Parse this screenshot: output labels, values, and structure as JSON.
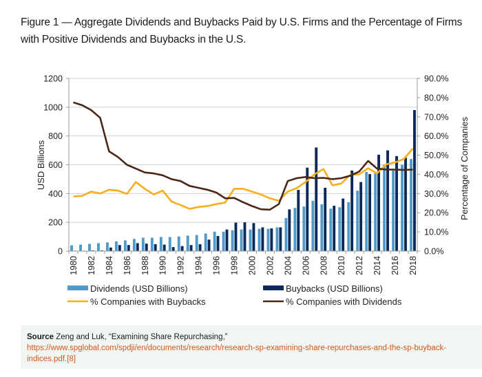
{
  "figure_title": "Figure 1 — Aggregate Dividends and Buybacks Paid by U.S. Firms and the Percentage of Firms with Positive Dividends and Buybacks in the U.S.",
  "source": {
    "label": "Source",
    "text": " Zeng and Luk, “Examining Share Repurchasing,”",
    "link": "https://www.spglobal.com/spdji/en/documents/research/research-sp-examining-share-repurchases-and-the-sp-buyback-indices.pdf.",
    "ref": "[8]"
  },
  "colors": {
    "dividends": "#4f9ac8",
    "buybacks": "#0b2a5a",
    "pct_buybacks": "#f8ad1c",
    "pct_dividends": "#4a2614",
    "grid": "#d0d0d0",
    "axis": "#999999",
    "link": "#d0581e"
  },
  "chart_data": {
    "type": "bar",
    "title": "Figure 1 — Aggregate Dividends and Buybacks Paid by U.S. Firms and the Percentage of Firms with Positive Dividends and Buybacks in the U.S.",
    "xlabel": "",
    "ylabel": "USD Billions",
    "y2label": "Percentage of Companies",
    "ylim": [
      0,
      1200
    ],
    "y2lim": [
      0,
      90
    ],
    "yticks": [
      "0",
      "200",
      "400",
      "600",
      "800",
      "1000",
      "1200"
    ],
    "y2ticks": [
      "0.0%",
      "10.0%",
      "20.0%",
      "30.0%",
      "40.0%",
      "50.0%",
      "60.0%",
      "70.0%",
      "80.0%",
      "90.0%"
    ],
    "grid": true,
    "legend_position": "bottom",
    "categories": [
      1980,
      1981,
      1982,
      1983,
      1984,
      1985,
      1986,
      1987,
      1988,
      1989,
      1990,
      1991,
      1992,
      1993,
      1994,
      1995,
      1996,
      1997,
      1998,
      1999,
      2000,
      2001,
      2002,
      2003,
      2004,
      2005,
      2006,
      2007,
      2008,
      2009,
      2010,
      2011,
      2012,
      2013,
      2014,
      2015,
      2016,
      2017,
      2018
    ],
    "xtick_labels": [
      "1980",
      "1982",
      "1984",
      "1986",
      "1988",
      "1990",
      "1992",
      "1994",
      "1996",
      "1998",
      "2000",
      "2002",
      "2004",
      "2006",
      "2008",
      "2010",
      "2012",
      "2014",
      "2016",
      "2018"
    ],
    "series": [
      {
        "name": "Dividends (USD Billions)",
        "kind": "bar",
        "axis": "left",
        "values": [
          40,
          45,
          50,
          55,
          60,
          68,
          75,
          85,
          93,
          93,
          98,
          98,
          102,
          108,
          112,
          122,
          135,
          135,
          145,
          150,
          150,
          155,
          155,
          165,
          230,
          300,
          310,
          350,
          325,
          295,
          305,
          340,
          420,
          550,
          540,
          600,
          560,
          600,
          640
        ]
      },
      {
        "name": "Buybacks (USD Billions)",
        "kind": "bar",
        "axis": "left",
        "values": [
          3,
          3,
          5,
          5,
          25,
          42,
          42,
          55,
          52,
          48,
          45,
          28,
          35,
          42,
          48,
          80,
          105,
          150,
          198,
          200,
          195,
          165,
          158,
          165,
          290,
          425,
          580,
          720,
          440,
          315,
          365,
          560,
          480,
          535,
          670,
          700,
          660,
          650,
          980
        ]
      },
      {
        "name": "% Companies with Buybacks",
        "kind": "line",
        "axis": "right",
        "values": [
          28.5,
          28.8,
          31.0,
          30.0,
          32.0,
          31.5,
          29.8,
          36.0,
          32.5,
          29.5,
          31.5,
          25.8,
          24.0,
          22.0,
          23.0,
          23.5,
          24.5,
          25.3,
          32.5,
          32.5,
          31.0,
          29.5,
          27.5,
          26.2,
          31.0,
          32.8,
          36.0,
          40.0,
          42.8,
          34.3,
          35.2,
          39.8,
          40.0,
          43.2,
          40.5,
          45.2,
          46.2,
          48.0,
          53.5
        ]
      },
      {
        "name": "% Companies with Dividends",
        "kind": "line",
        "axis": "right",
        "values": [
          77.5,
          76.0,
          73.5,
          69.5,
          52.0,
          49.0,
          45.0,
          43.0,
          41.0,
          40.5,
          39.5,
          37.5,
          36.5,
          34.0,
          33.0,
          32.0,
          30.5,
          27.5,
          27.7,
          25.5,
          23.5,
          21.8,
          21.6,
          24.5,
          36.5,
          38.0,
          38.6,
          38.0,
          38.2,
          37.5,
          38.0,
          39.3,
          41.5,
          47.0,
          43.0,
          42.5,
          42.5,
          42.3,
          42.5
        ]
      }
    ]
  }
}
